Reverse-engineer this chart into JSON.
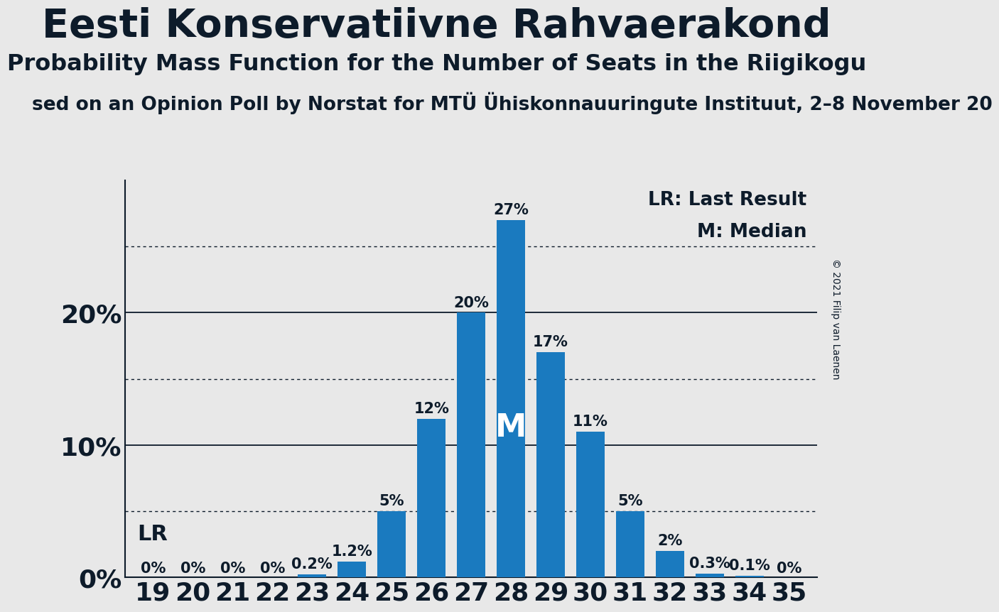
{
  "title": "Eesti Konservatiivne Rahvaerakond",
  "subtitle": "Probability Mass Function for the Number of Seats in the Riigikogu",
  "source_line": "sed on an Opinion Poll by Norstat for MTÜ Ühiskonnauuringute Instituut, 2–8 November 20",
  "copyright": "© 2021 Filip van Laenen",
  "seats": [
    19,
    20,
    21,
    22,
    23,
    24,
    25,
    26,
    27,
    28,
    29,
    30,
    31,
    32,
    33,
    34,
    35
  ],
  "probabilities": [
    0.0,
    0.0,
    0.0,
    0.0,
    0.2,
    1.2,
    5.0,
    12.0,
    20.0,
    27.0,
    17.0,
    11.0,
    5.0,
    2.0,
    0.3,
    0.1,
    0.0
  ],
  "bar_color": "#1a7abf",
  "background_color": "#e8e8e8",
  "lr_seat": 19,
  "median_seat": 28,
  "lr_label": "LR",
  "median_label": "M",
  "lr_legend": "LR: Last Result",
  "median_legend": "M: Median",
  "yticks_solid": [
    0,
    10,
    20
  ],
  "ytick_dotted": [
    5,
    15,
    25
  ],
  "ymax": 30,
  "bar_label_fontsize": 15,
  "legend_fontsize": 19,
  "axis_label_color": "#0d1b2a",
  "spine_color": "#0d1b2a",
  "lr_fontsize": 22,
  "ytick_fontsize": 26,
  "xtick_fontsize": 26,
  "title_fontsize": 40,
  "subtitle_fontsize": 23,
  "source_fontsize": 19,
  "copyright_fontsize": 10
}
